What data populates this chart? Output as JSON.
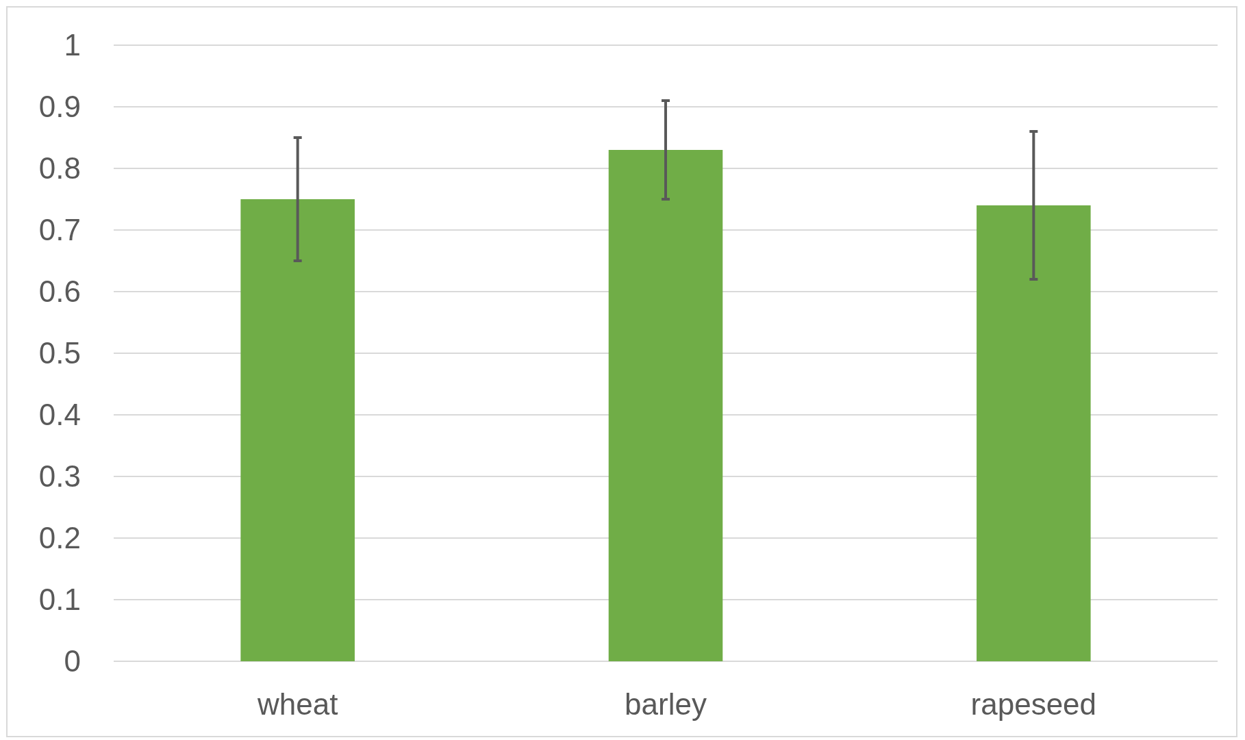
{
  "chart_data": {
    "type": "bar",
    "categories": [
      "wheat",
      "barley",
      "rapeseed"
    ],
    "values": [
      0.75,
      0.83,
      0.74
    ],
    "errors": [
      0.1,
      0.08,
      0.12
    ],
    "color": "#70ad47",
    "ylim": [
      0,
      1
    ],
    "yticks": [
      0,
      0.1,
      0.2,
      0.3,
      0.4,
      0.5,
      0.6,
      0.7,
      0.8,
      0.9,
      1
    ],
    "grid": "y"
  }
}
